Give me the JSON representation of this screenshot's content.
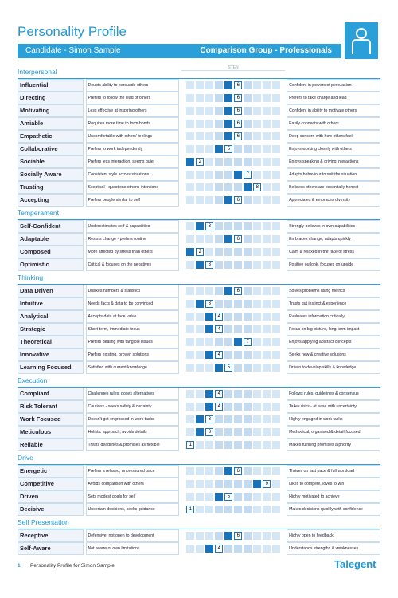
{
  "header": {
    "title": "Personality Profile",
    "candidate": "Candidate - Simon Sample",
    "comparison": "Comparison Group - Professionals",
    "sten_label": "STEN"
  },
  "sections": [
    {
      "title": "Interpersonal",
      "traits": [
        {
          "name": "Influential",
          "low": "Doubts ability to persuade others",
          "sten": 6,
          "high": "Confident in powers of persuasion"
        },
        {
          "name": "Directing",
          "low": "Prefers to follow the lead of others",
          "sten": 6,
          "high": "Prefers to take charge and lead"
        },
        {
          "name": "Motivating",
          "low": "Less effective at inspiring others",
          "sten": 6,
          "high": "Confident in ability to motivate others"
        },
        {
          "name": "Amiable",
          "low": "Requires more time to form bonds",
          "sten": 6,
          "high": "Easily connects with others"
        },
        {
          "name": "Empathetic",
          "low": "Uncomfortable with others' feelings",
          "sten": 6,
          "high": "Deep concern with how others feel"
        },
        {
          "name": "Collaborative",
          "low": "Prefers to work independently",
          "sten": 5,
          "high": "Enjoys working closely with others"
        },
        {
          "name": "Sociable",
          "low": "Prefers less interaction, seems quiet",
          "sten": 2,
          "high": "Enjoys speaking & driving interactions"
        },
        {
          "name": "Socially Aware",
          "low": "Consistent style across situations",
          "sten": 7,
          "high": "Adapts behaviour to suit the situation"
        },
        {
          "name": "Trusting",
          "low": "Sceptical - questions others' intentions",
          "sten": 8,
          "high": "Believes others are essentially honest"
        },
        {
          "name": "Accepting",
          "low": "Prefers people similar to self",
          "sten": 6,
          "high": "Appreciates & embraces diversity"
        }
      ]
    },
    {
      "title": "Temperament",
      "traits": [
        {
          "name": "Self-Confident",
          "low": "Underestimates self & capabilities",
          "sten": 3,
          "high": "Strongly believes in own capabilities"
        },
        {
          "name": "Adaptable",
          "low": "Resists change - prefers routine",
          "sten": 6,
          "high": "Embraces change, adapts quickly"
        },
        {
          "name": "Composed",
          "low": "More affected by stress than others",
          "sten": 2,
          "high": "Calm & relaxed in the face of stress"
        },
        {
          "name": "Optimistic",
          "low": "Critical & focuses on the negatives",
          "sten": 3,
          "high": "Positive outlook, focuses on upside"
        }
      ]
    },
    {
      "title": "Thinking",
      "traits": [
        {
          "name": "Data Driven",
          "low": "Dislikes numbers & statistics",
          "sten": 6,
          "high": "Solves problems using metrics"
        },
        {
          "name": "Intuitive",
          "low": "Needs facts & data to be convinced",
          "sten": 3,
          "high": "Trusts gut instinct & experience"
        },
        {
          "name": "Analytical",
          "low": "Accepts data at face value",
          "sten": 4,
          "high": "Evaluates information critically"
        },
        {
          "name": "Strategic",
          "low": "Short-term, immediate focus",
          "sten": 4,
          "high": "Focus on big picture, long-term impact"
        },
        {
          "name": "Theoretical",
          "low": "Prefers dealing with tangible issues",
          "sten": 7,
          "high": "Enjoys applying abstract concepts"
        },
        {
          "name": "Innovative",
          "low": "Prefers existing, proven solutions",
          "sten": 4,
          "high": "Seeks new & creative solutions"
        },
        {
          "name": "Learning Focused",
          "low": "Satisfied with current knowledge",
          "sten": 5,
          "high": "Driven to develop skills & knowledge"
        }
      ]
    },
    {
      "title": "Execution",
      "traits": [
        {
          "name": "Compliant",
          "low": "Challenges rules, poses alternatives",
          "sten": 4,
          "high": "Follows rules, guidelines & consensus"
        },
        {
          "name": "Risk Tolerant",
          "low": "Cautious - seeks safety & certainty",
          "sten": 4,
          "high": "Takes risks - at ease with uncertainty"
        },
        {
          "name": "Work Focused",
          "low": "Doesn't get engrossed in work tasks",
          "sten": 3,
          "high": "Highly engaged in work tasks"
        },
        {
          "name": "Meticulous",
          "low": "Holistic approach, avoids details",
          "sten": 3,
          "high": "Methodical, organised & detail-focused"
        },
        {
          "name": "Reliable",
          "low": "Treats deadlines & promises as flexible",
          "sten": 1,
          "high": "Makes fulfilling promises a priority"
        }
      ]
    },
    {
      "title": "Drive",
      "traits": [
        {
          "name": "Energetic",
          "low": "Prefers a relaxed, unpressured pace",
          "sten": 6,
          "high": "Thrives on fast pace & full workload"
        },
        {
          "name": "Competitive",
          "low": "Avoids comparison with others",
          "sten": 9,
          "high": "Likes to compete, loves to win"
        },
        {
          "name": "Driven",
          "low": "Sets modest goals for self",
          "sten": 5,
          "high": "Highly motivated to achieve"
        },
        {
          "name": "Decisive",
          "low": "Uncertain decisions, seeks guidance",
          "sten": 1,
          "high": "Makes decisions quickly with confidence"
        }
      ]
    },
    {
      "title": "Self Presentation",
      "traits": [
        {
          "name": "Receptive",
          "low": "Defensive, not open to development",
          "sten": 6,
          "high": "Highly open to feedback"
        },
        {
          "name": "Self-Aware",
          "low": "Not aware of own limitations",
          "sten": 4,
          "high": "Understands strengths & weaknesses"
        }
      ]
    }
  ],
  "footer": {
    "page": "1",
    "text": "Personality Profile for Simon Sample",
    "brand": "Talegent"
  }
}
